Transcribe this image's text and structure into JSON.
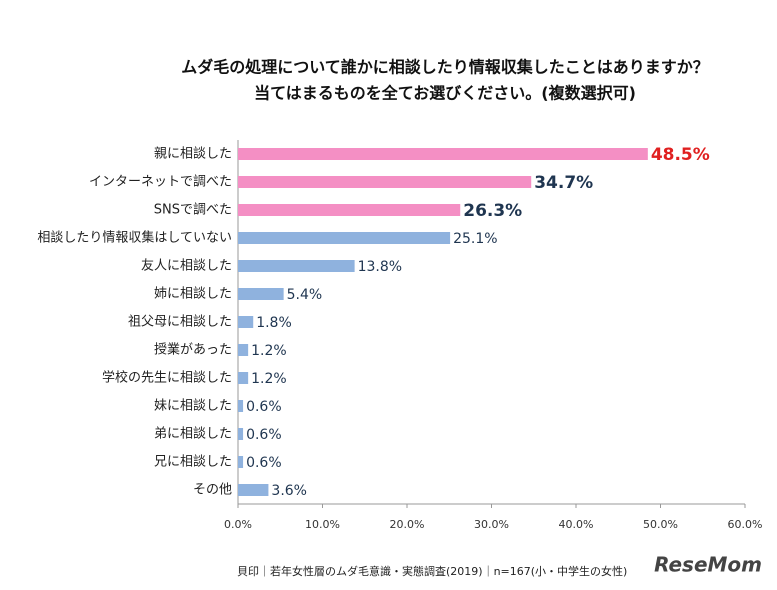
{
  "chart_data": {
    "type": "bar",
    "title_lines": [
      "ムダ毛の処理について誰かに相談したり情報収集したことはありますか？",
      "当てはまるものを全てお選びください。(複数選択可)"
    ],
    "categories": [
      "親に相談した",
      "インターネットで調べた",
      "SNSで調べた",
      "相談したり情報収集はしていない",
      "友人に相談した",
      "姉に相談した",
      "祖父母に相談した",
      "授業があった",
      "学校の先生に相談した",
      "妹に相談した",
      "弟に相談した",
      "兄に相談した",
      "その他"
    ],
    "values": [
      48.5,
      34.7,
      26.3,
      25.1,
      13.8,
      5.4,
      1.8,
      1.2,
      1.2,
      0.6,
      0.6,
      0.6,
      3.6
    ],
    "value_labels": [
      "48.5%",
      "34.7%",
      "26.3%",
      "25.1%",
      "13.8%",
      "5.4%",
      "1.8%",
      "1.2%",
      "1.2%",
      "0.6%",
      "0.6%",
      "0.6%",
      "3.6%"
    ],
    "colors": [
      "#f48fc4",
      "#f48fc4",
      "#f48fc4",
      "#8fb2de",
      "#8fb2de",
      "#8fb2de",
      "#8fb2de",
      "#8fb2de",
      "#8fb2de",
      "#8fb2de",
      "#8fb2de",
      "#8fb2de",
      "#8fb2de"
    ],
    "label_colors": [
      "#e02020",
      "#1f3550",
      "#1f3550",
      "#1f3550",
      "#1f3550",
      "#1f3550",
      "#1f3550",
      "#1f3550",
      "#1f3550",
      "#1f3550",
      "#1f3550",
      "#1f3550",
      "#1f3550"
    ],
    "xlim": [
      0,
      60
    ],
    "xticks": [
      {
        "value": 0,
        "label": "0.0%"
      },
      {
        "value": 10,
        "label": "10.0%"
      },
      {
        "value": 20,
        "label": "20.0%"
      },
      {
        "value": 30,
        "label": "30.0%"
      },
      {
        "value": 40,
        "label": "40.0%"
      },
      {
        "value": 50,
        "label": "50.0%"
      },
      {
        "value": 60,
        "label": "60.0%"
      }
    ],
    "grid": false,
    "source": "貝印｜若年女性層のムダ毛意識・実態調査(2019)｜n=167(小・中学生の女性)",
    "logo": "ReseMom"
  }
}
